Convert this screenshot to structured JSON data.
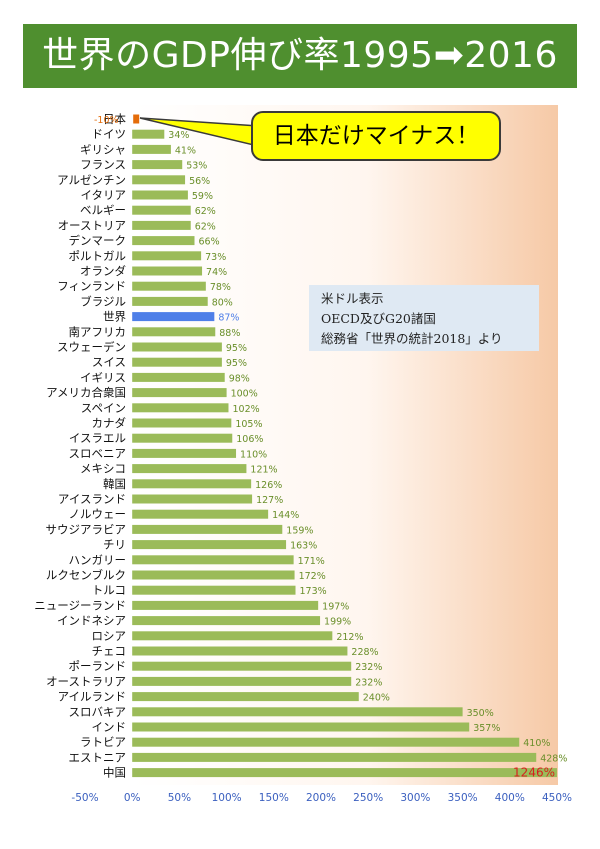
{
  "title": "世界のGDP伸び率1995➡2016",
  "callout": "日本だけマイナス！",
  "note": {
    "line1": "米ドル表示",
    "line2": "OECD及びG20諸国",
    "line3": "総務省「世界の統計2018」より"
  },
  "colors": {
    "title_bg": "#4f8f2f",
    "bar_default": "#9bbb59",
    "bar_world": "#4f7fe8",
    "bar_japan": "#e46c0a",
    "label_default": "#6a8f2a",
    "label_world": "#4f7fe8",
    "label_japan": "#e46c0a",
    "label_china": "#d81e1e",
    "axis_tick": "#3a5fbf",
    "callout_bg": "#ffff00",
    "note_bg": "#dfe9f3"
  },
  "chart_data": {
    "type": "bar",
    "orientation": "horizontal",
    "title": "世界のGDP伸び率1995➡2016",
    "xlim": [
      -50,
      450
    ],
    "x_ticks": [
      "-50%",
      "0%",
      "50%",
      "100%",
      "150%",
      "200%",
      "250%",
      "300%",
      "350%",
      "400%",
      "450%"
    ],
    "grid": false,
    "categories": [
      "日本",
      "ドイツ",
      "ギリシャ",
      "フランス",
      "アルゼンチン",
      "イタリア",
      "ベルギー",
      "オーストリア",
      "デンマーク",
      "ポルトガル",
      "オランダ",
      "フィンランド",
      "ブラジル",
      "世界",
      "南アフリカ",
      "スウェーデン",
      "スイス",
      "イギリス",
      "アメリカ合衆国",
      "スペイン",
      "カナダ",
      "イスラエル",
      "スロベニア",
      "メキシコ",
      "韓国",
      "アイスランド",
      "ノルウェー",
      "サウジアラビア",
      "チリ",
      "ハンガリー",
      "ルクセンブルク",
      "トルコ",
      "ニュージーランド",
      "インドネシア",
      "ロシア",
      "チェコ",
      "ポーランド",
      "オーストラリア",
      "アイルランド",
      "スロバキア",
      "インド",
      "ラトビア",
      "エストニア",
      "中国"
    ],
    "values": [
      -10,
      34,
      41,
      53,
      56,
      59,
      62,
      62,
      66,
      73,
      74,
      78,
      80,
      87,
      88,
      95,
      95,
      98,
      100,
      102,
      105,
      106,
      110,
      121,
      126,
      127,
      144,
      159,
      163,
      171,
      172,
      173,
      197,
      199,
      212,
      228,
      232,
      232,
      240,
      350,
      357,
      410,
      428,
      1246
    ],
    "value_labels": [
      "-10%",
      "34%",
      "41%",
      "53%",
      "56%",
      "59%",
      "62%",
      "62%",
      "66%",
      "73%",
      "74%",
      "78%",
      "80%",
      "87%",
      "88%",
      "95%",
      "95%",
      "98%",
      "100%",
      "102%",
      "105%",
      "106%",
      "110%",
      "121%",
      "126%",
      "127%",
      "144%",
      "159%",
      "163%",
      "171%",
      "172%",
      "173%",
      "197%",
      "199%",
      "212%",
      "228%",
      "232%",
      "232%",
      "240%",
      "350%",
      "357%",
      "410%",
      "428%",
      "1246%"
    ]
  }
}
